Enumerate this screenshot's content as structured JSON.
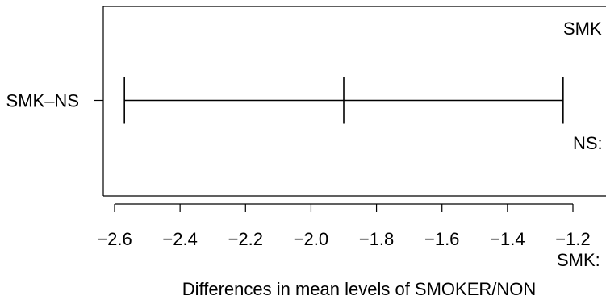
{
  "chart_data": {
    "type": "interval",
    "title": "",
    "xlabel": "Differences in mean levels of SMOKER/NON",
    "ylabel": "",
    "xlim": [
      -2.62,
      -1.2
    ],
    "xticks": [
      -2.6,
      -2.4,
      -2.2,
      -2.0,
      -1.8,
      -1.6,
      -1.4,
      -1.2
    ],
    "xtick_labels": [
      "−2.6",
      "−2.4",
      "−2.2",
      "−2.0",
      "−1.8",
      "−1.6",
      "−1.4",
      "−1.2"
    ],
    "intervals": [
      {
        "label": "SMK–NS",
        "lower": -2.57,
        "estimate": -1.9,
        "upper": -1.23
      }
    ],
    "reference_line": 0,
    "side_labels": [
      "SMK",
      "NS:",
      "SMK:"
    ],
    "grid": false
  }
}
